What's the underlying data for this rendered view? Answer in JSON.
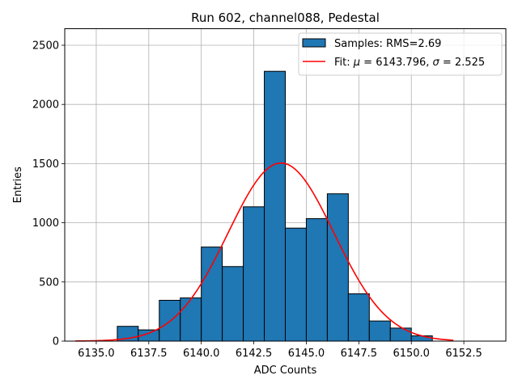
{
  "chart_data": {
    "type": "bar",
    "title": "Run 602, channel088, Pedestal",
    "xlabel": "ADC Counts",
    "ylabel": "Entries",
    "xlim": [
      6133.5,
      6154.5
    ],
    "ylim": [
      0,
      2640
    ],
    "bin_width": 1.0,
    "x_ticks": [
      6135.0,
      6137.5,
      6140.0,
      6142.5,
      6145.0,
      6147.5,
      6150.0,
      6152.5
    ],
    "x_tick_labels": [
      "6135.0",
      "6137.5",
      "6140.0",
      "6142.5",
      "6145.0",
      "6147.5",
      "6150.0",
      "6152.5"
    ],
    "y_ticks": [
      0,
      500,
      1000,
      1500,
      2000,
      2500
    ],
    "y_tick_labels": [
      "0",
      "500",
      "1000",
      "1500",
      "2000",
      "2500"
    ],
    "grid": true,
    "histogram": {
      "name": "Samples: RMS=2.69",
      "color": "#1f77b4",
      "edge_color": "#000000",
      "bin_left_edges": [
        6136,
        6137,
        6138,
        6139,
        6140,
        6141,
        6142,
        6143,
        6144,
        6145,
        6146,
        6147,
        6148,
        6149,
        6150
      ],
      "values": [
        125,
        95,
        345,
        365,
        795,
        630,
        1135,
        2280,
        955,
        1035,
        1245,
        400,
        170,
        110,
        45
      ]
    },
    "fit": {
      "name": "Fit: μ = 6143.796, σ = 2.525",
      "legend_prefix": "Fit: ",
      "legend_mu": "μ",
      "legend_mu_value": " = 6143.796, ",
      "legend_sigma": "σ",
      "legend_sigma_value": " = 2.525",
      "color": "#ff0000",
      "mu": 6143.796,
      "sigma": 2.525,
      "amplitude": 1505,
      "x_range": [
        6134.0,
        6152.0
      ]
    },
    "legend_position": "top-right"
  }
}
